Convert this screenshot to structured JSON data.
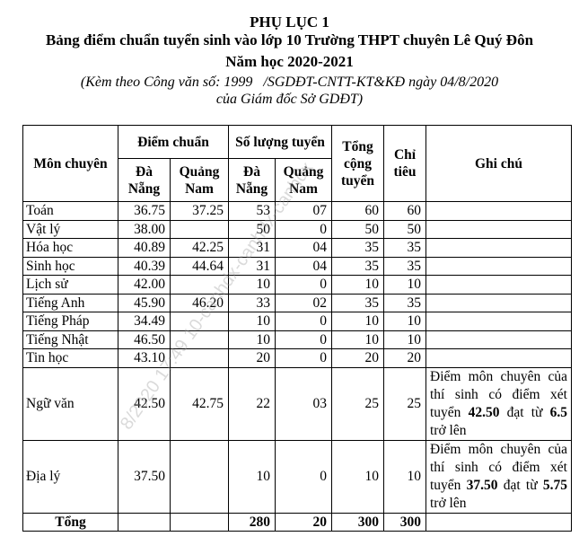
{
  "header": {
    "title": "PHỤ LỤC 1",
    "subtitle": "Bảng điểm chuẩn tuyển sinh vào lớp 10 Trường THPT chuyên Lê Quý Đôn",
    "school_year": "Năm học 2020-2021",
    "reference_line1": "(Kèm theo Công văn số: 1999   /SGDĐT-CNTT-KT&KĐ ngày 04/8/2020",
    "reference_line2": "của Giám đốc Sở GDĐT)"
  },
  "table": {
    "headers": {
      "subject": "Môn chuyên",
      "cutoff": "Điểm chuẩn",
      "quota_admitted": "Số lượng tuyển",
      "total_admitted": "Tổng cộng tuyển",
      "target": "Chỉ tiêu",
      "note": "Ghi chú",
      "da_nang": "Đà Nẵng",
      "quang_nam": "Quảng Nam"
    },
    "rows": [
      {
        "subject": "Toán",
        "cut_dn": "36.75",
        "cut_qn": "37.25",
        "num_dn": "53",
        "num_qn": "07",
        "total": "60",
        "target": "60"
      },
      {
        "subject": "Vật lý",
        "cut_dn": "38.00",
        "cut_qn": "",
        "num_dn": "50",
        "num_qn": "0",
        "total": "50",
        "target": "50"
      },
      {
        "subject": "Hóa học",
        "cut_dn": "40.89",
        "cut_qn": "42.25",
        "num_dn": "31",
        "num_qn": "04",
        "total": "35",
        "target": "35"
      },
      {
        "subject": "Sinh học",
        "cut_dn": "40.39",
        "cut_qn": "44.64",
        "num_dn": "31",
        "num_qn": "04",
        "total": "35",
        "target": "35"
      },
      {
        "subject": "Lịch sử",
        "cut_dn": "42.00",
        "cut_qn": "",
        "num_dn": "10",
        "num_qn": "0",
        "total": "10",
        "target": "10"
      },
      {
        "subject": "Tiếng Anh",
        "cut_dn": "45.90",
        "cut_qn": "46.20",
        "num_dn": "33",
        "num_qn": "02",
        "total": "35",
        "target": "35"
      },
      {
        "subject": "Tiếng Pháp",
        "cut_dn": "34.49",
        "cut_qn": "",
        "num_dn": "10",
        "num_qn": "0",
        "total": "10",
        "target": "10"
      },
      {
        "subject": "Tiếng Nhật",
        "cut_dn": "46.50",
        "cut_qn": "",
        "num_dn": "10",
        "num_qn": "0",
        "total": "10",
        "target": "10"
      },
      {
        "subject": "Tin học",
        "cut_dn": "43.10",
        "cut_qn": "",
        "num_dn": "20",
        "num_qn": "0",
        "total": "20",
        "target": "20"
      },
      {
        "subject": "Ngữ văn",
        "cut_dn": "42.50",
        "cut_qn": "42.75",
        "num_dn": "22",
        "num_qn": "03",
        "total": "25",
        "target": "25",
        "note": {
          "pre": "Điểm môn chuyên của thí sinh có điểm xét tuyển ",
          "score": "42.50",
          "mid": " đạt từ ",
          "min": "6.5",
          "post": " trở lên"
        }
      },
      {
        "subject": "Địa lý",
        "cut_dn": "37.50",
        "cut_qn": "",
        "num_dn": "10",
        "num_qn": "0",
        "total": "10",
        "target": "10",
        "note": {
          "pre": "Điểm môn chuyên của thí sinh có điểm xét tuyển ",
          "score": "37.50",
          "mid": " đạt từ ",
          "min": "5.75",
          "post": " trở lên"
        }
      }
    ],
    "total_row": {
      "label": "Tổng",
      "num_dn": "280",
      "num_qn": "20",
      "total": "300",
      "target": "300"
    }
  },
  "watermark": "8/2020 17:49 10-canhdx-canhdx-canhdx"
}
